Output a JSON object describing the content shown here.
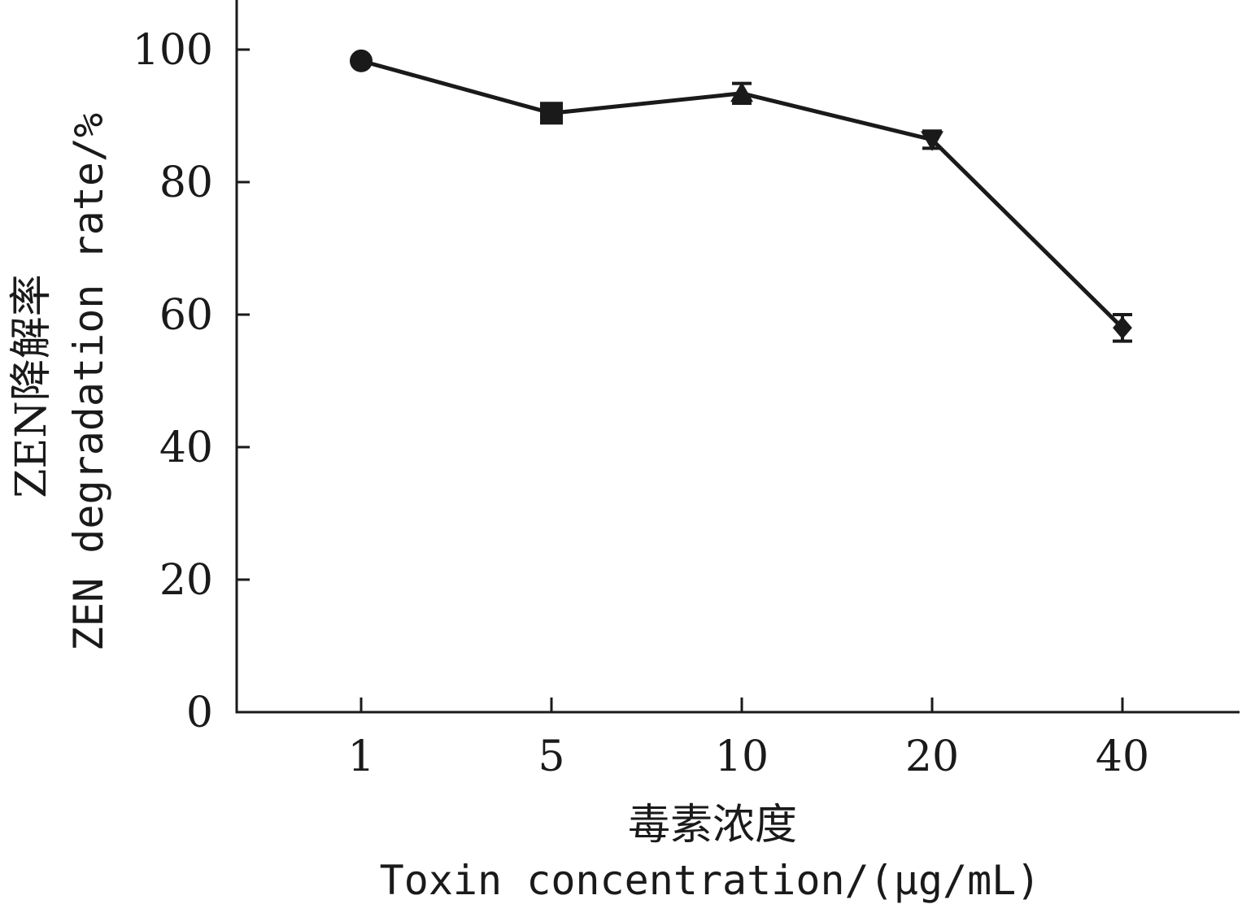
{
  "chart_data": {
    "type": "line",
    "categories": [
      "1",
      "5",
      "10",
      "20",
      "40"
    ],
    "series": [
      {
        "values": [
          98.3,
          90.4,
          93.4,
          86.4,
          58.0
        ],
        "errors": [
          0.6,
          0.9,
          1.5,
          1.3,
          2.0
        ],
        "markers": [
          "circle",
          "square",
          "triangle-up",
          "triangle-down",
          "diamond"
        ]
      }
    ],
    "ylim": [
      0,
      105
    ],
    "yticks": [
      0,
      20,
      40,
      60,
      80,
      100
    ],
    "ylabel_cn": "ZEN降解率",
    "ylabel_en": "ZEN degradation rate/%",
    "xlabel_cn": "毒素浓度",
    "xlabel_en": "Toxin concentration/(μg/mL)",
    "grid": false,
    "legend": "none",
    "color": "#1a1a1a"
  }
}
